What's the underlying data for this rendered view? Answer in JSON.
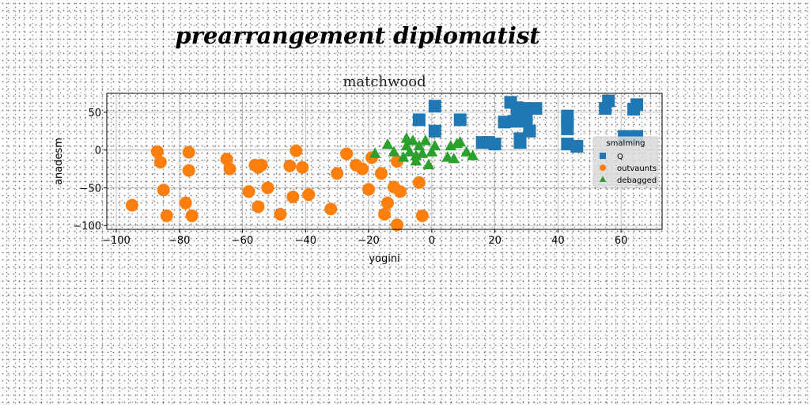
{
  "figure": {
    "suptitle": "prearrangement diplomatist"
  },
  "chart_data": {
    "type": "scatter",
    "title": "matchwood",
    "xlabel": "yogini",
    "ylabel": "anadesm",
    "xlim": [
      -103,
      73
    ],
    "ylim": [
      -105,
      75
    ],
    "xticks": [
      -100,
      -80,
      -60,
      -40,
      -20,
      0,
      20,
      40,
      60
    ],
    "yticks": [
      -100,
      -50,
      0,
      50
    ],
    "grid": true,
    "legend": {
      "title": "smalming",
      "position": "right"
    },
    "series": [
      {
        "name": "Q",
        "marker": "square",
        "color": "#1f77b4",
        "points": [
          [
            -4,
            40
          ],
          [
            1,
            58
          ],
          [
            1,
            25
          ],
          [
            9,
            40
          ],
          [
            16,
            10
          ],
          [
            18,
            10
          ],
          [
            20,
            8
          ],
          [
            23,
            37
          ],
          [
            25,
            63
          ],
          [
            26,
            38
          ],
          [
            27,
            56
          ],
          [
            27,
            45
          ],
          [
            28,
            15
          ],
          [
            28,
            10
          ],
          [
            30,
            55
          ],
          [
            30,
            48
          ],
          [
            30,
            38
          ],
          [
            31,
            25
          ],
          [
            33,
            55
          ],
          [
            43,
            45
          ],
          [
            43,
            37
          ],
          [
            43,
            28
          ],
          [
            43,
            8
          ],
          [
            46,
            5
          ],
          [
            55,
            55
          ],
          [
            56,
            65
          ],
          [
            61,
            18
          ],
          [
            63,
            18
          ],
          [
            64,
            54
          ],
          [
            65,
            18
          ],
          [
            65,
            60
          ]
        ]
      },
      {
        "name": "outvaunts",
        "marker": "circle",
        "color": "#ff7f0e",
        "points": [
          [
            -95,
            -73
          ],
          [
            -87,
            -2
          ],
          [
            -86,
            -16
          ],
          [
            -85,
            -53
          ],
          [
            -84,
            -87
          ],
          [
            -78,
            -70
          ],
          [
            -77,
            -27
          ],
          [
            -77,
            -3
          ],
          [
            -76,
            -87
          ],
          [
            -65,
            -12
          ],
          [
            -64,
            -25
          ],
          [
            -58,
            -55
          ],
          [
            -56,
            -20
          ],
          [
            -55,
            -23
          ],
          [
            -55,
            -75
          ],
          [
            -54,
            -20
          ],
          [
            -52,
            -50
          ],
          [
            -48,
            -85
          ],
          [
            -45,
            -21
          ],
          [
            -44,
            -62
          ],
          [
            -43,
            -1
          ],
          [
            -41,
            -23
          ],
          [
            -39,
            -59
          ],
          [
            -32,
            -78
          ],
          [
            -30,
            -31
          ],
          [
            -27,
            -5
          ],
          [
            -24,
            -20
          ],
          [
            -22,
            -25
          ],
          [
            -20,
            -52
          ],
          [
            -19,
            -10
          ],
          [
            -16,
            -31
          ],
          [
            -15,
            -85
          ],
          [
            -14,
            -70
          ],
          [
            -12,
            -49
          ],
          [
            -11,
            -15
          ],
          [
            -11,
            -99
          ],
          [
            -10,
            -55
          ],
          [
            -4,
            -43
          ],
          [
            -3,
            -87
          ]
        ]
      },
      {
        "name": "debagged",
        "marker": "triangle",
        "color": "#2ca02c",
        "points": [
          [
            -18,
            -5
          ],
          [
            -14,
            7
          ],
          [
            -12,
            -3
          ],
          [
            -9,
            -10
          ],
          [
            -8,
            15
          ],
          [
            -8,
            5
          ],
          [
            -7,
            -3
          ],
          [
            -6,
            12
          ],
          [
            -5,
            -8
          ],
          [
            -5,
            -15
          ],
          [
            -4,
            5
          ],
          [
            -3,
            -5
          ],
          [
            -2,
            12
          ],
          [
            -1,
            -20
          ],
          [
            0,
            -3
          ],
          [
            1,
            5
          ],
          [
            5,
            -10
          ],
          [
            6,
            5
          ],
          [
            7,
            -12
          ],
          [
            8,
            8
          ],
          [
            9,
            10
          ],
          [
            11,
            -3
          ],
          [
            13,
            -8
          ]
        ]
      }
    ]
  }
}
